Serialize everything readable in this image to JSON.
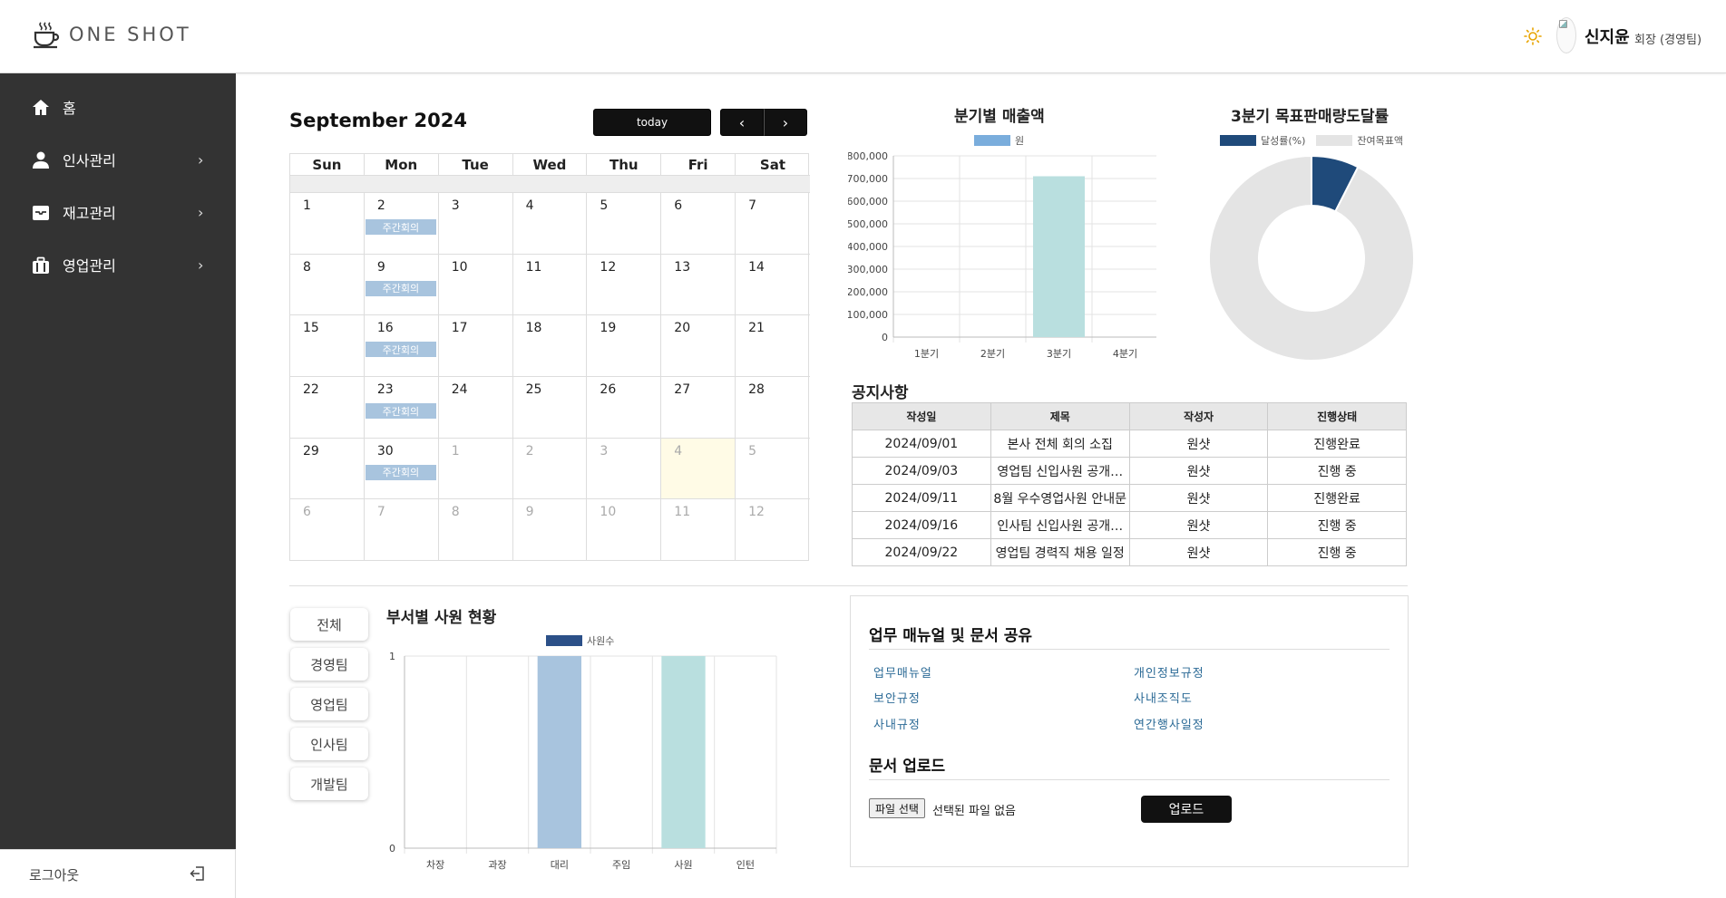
{
  "header": {
    "logo_text": "ONE SHOT",
    "user_name": "신지윤",
    "user_role": "회장 (경영팀)"
  },
  "sidebar": {
    "items": [
      {
        "label": "홈",
        "icon": "home-icon"
      },
      {
        "label": "인사관리",
        "icon": "person-icon",
        "chevron": "›"
      },
      {
        "label": "재고관리",
        "icon": "inbox-icon",
        "chevron": "›"
      },
      {
        "label": "영업관리",
        "icon": "briefcase-icon",
        "chevron": "›"
      }
    ],
    "logout_label": "로그아웃"
  },
  "calendar": {
    "title": "September 2024",
    "today_label": "today",
    "prev_label": "‹",
    "next_label": "›",
    "weekdays": [
      "Sun",
      "Mon",
      "Tue",
      "Wed",
      "Thu",
      "Fri",
      "Sat"
    ],
    "weeks": [
      [
        {
          "d": "1"
        },
        {
          "d": "2",
          "event": "주간회의"
        },
        {
          "d": "3"
        },
        {
          "d": "4"
        },
        {
          "d": "5"
        },
        {
          "d": "6"
        },
        {
          "d": "7"
        }
      ],
      [
        {
          "d": "8"
        },
        {
          "d": "9",
          "event": "주간회의"
        },
        {
          "d": "10"
        },
        {
          "d": "11"
        },
        {
          "d": "12"
        },
        {
          "d": "13"
        },
        {
          "d": "14"
        }
      ],
      [
        {
          "d": "15"
        },
        {
          "d": "16",
          "event": "주간회의"
        },
        {
          "d": "17"
        },
        {
          "d": "18"
        },
        {
          "d": "19"
        },
        {
          "d": "20"
        },
        {
          "d": "21"
        }
      ],
      [
        {
          "d": "22"
        },
        {
          "d": "23",
          "event": "주간회의"
        },
        {
          "d": "24"
        },
        {
          "d": "25"
        },
        {
          "d": "26"
        },
        {
          "d": "27"
        },
        {
          "d": "28"
        }
      ],
      [
        {
          "d": "29"
        },
        {
          "d": "30",
          "event": "주간회의"
        },
        {
          "d": "1",
          "other": true
        },
        {
          "d": "2",
          "other": true
        },
        {
          "d": "3",
          "other": true
        },
        {
          "d": "4",
          "other": true,
          "today": true
        },
        {
          "d": "5",
          "other": true
        }
      ],
      [
        {
          "d": "6",
          "other": true
        },
        {
          "d": "7",
          "other": true
        },
        {
          "d": "8",
          "other": true
        },
        {
          "d": "9",
          "other": true
        },
        {
          "d": "10",
          "other": true
        },
        {
          "d": "11",
          "other": true
        },
        {
          "d": "12",
          "other": true
        }
      ]
    ]
  },
  "chart_data": [
    {
      "type": "bar",
      "title": "분기별 매출액",
      "categories": [
        "1분기",
        "2분기",
        "3분기",
        "4분기"
      ],
      "series": [
        {
          "name": "원",
          "values": [
            0,
            0,
            710000,
            0
          ],
          "color": "#b9dfdf"
        }
      ],
      "legend_color": "#7aaddc",
      "yticks": [
        "800,000",
        "700,000",
        "600,000",
        "500,000",
        "400,000",
        "300,000",
        "200,000",
        "100,000",
        "0"
      ],
      "ylim": [
        0,
        800000
      ],
      "legend": "top"
    },
    {
      "type": "pie",
      "title": "3분기 목표판매량도달률",
      "labels": [
        "달성률(%)",
        "잔여목표액"
      ],
      "values": [
        7.5,
        92.5
      ],
      "colors": [
        "#1f4a7a",
        "#e4e4e4"
      ],
      "legend": "top"
    },
    {
      "type": "bar",
      "title": "부서별 사원 현황",
      "categories": [
        "차장",
        "과장",
        "대리",
        "주임",
        "사원",
        "인턴"
      ],
      "series": [
        {
          "name": "사원수",
          "values": [
            0,
            0,
            1,
            0,
            1,
            0
          ]
        }
      ],
      "bar_colors": [
        "#a8c4de",
        "#a8c4de",
        "#a8c4de",
        "#a8c4de",
        "#b9dfdf",
        "#a8c4de"
      ],
      "legend_color": "#2c5088",
      "yticks": [
        "1",
        "0"
      ],
      "ylim": [
        0,
        1
      ],
      "legend": "top"
    }
  ],
  "notices": {
    "title": "공지사항",
    "columns": [
      "작성일",
      "제목",
      "작성자",
      "진행상태"
    ],
    "rows": [
      [
        "2024/09/01",
        "본사 전체 회의 소집",
        "원샷",
        "진행완료"
      ],
      [
        "2024/09/03",
        "영업팀 신입사원 공개…",
        "원샷",
        "진행 중"
      ],
      [
        "2024/09/11",
        "8월 우수영업사원 안내문",
        "원샷",
        "진행완료"
      ],
      [
        "2024/09/16",
        "인사팀 신입사원 공개…",
        "원샷",
        "진행 중"
      ],
      [
        "2024/09/22",
        "영업팀 경력직 채용 일정",
        "원샷",
        "진행 중"
      ]
    ]
  },
  "dept_filter": [
    "전체",
    "경영팀",
    "영업팀",
    "인사팀",
    "개발팀"
  ],
  "docs": {
    "title": "업무 매뉴얼 및 문서 공유",
    "links": [
      "업무매뉴얼",
      "개인정보규정",
      "보안규정",
      "사내조직도",
      "사내규정",
      "연간행사일정"
    ],
    "upload_title": "문서 업로드",
    "file_button": "파일 선택",
    "file_status": "선택된 파일 없음",
    "upload_button": "업로드"
  },
  "colors": {
    "sidebar_bg": "#333333",
    "event_bg": "#a8c4de",
    "today_bg": "#fffbe6"
  }
}
